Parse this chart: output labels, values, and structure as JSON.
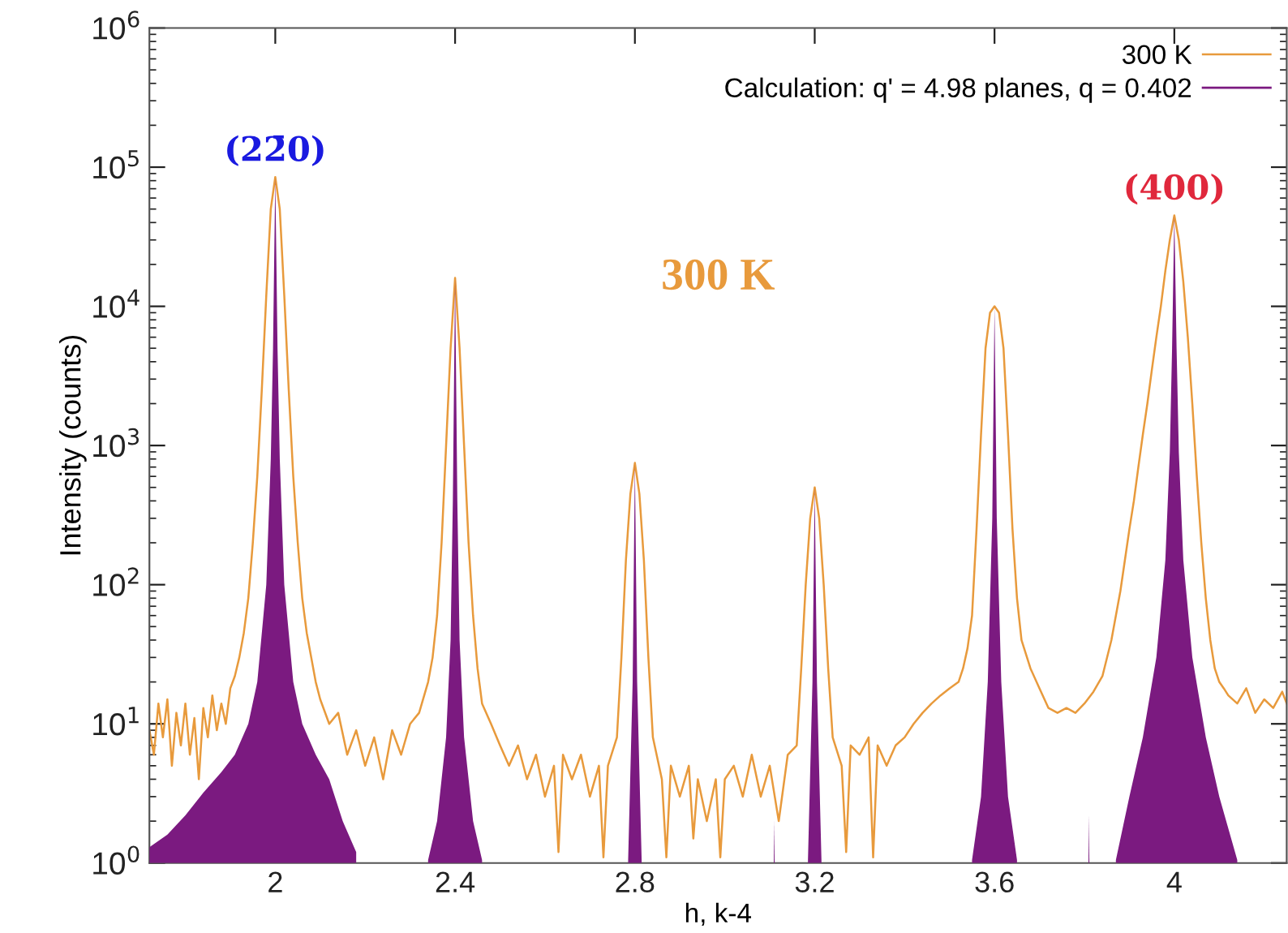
{
  "chart_data": {
    "type": "line",
    "xlabel": "h, k-4",
    "ylabel": "Intensity (counts)",
    "xlim": [
      1.72,
      4.25
    ],
    "xticks": [
      2,
      2.4,
      2.8,
      3.2,
      3.6,
      4
    ],
    "ylim": [
      1,
      1000000
    ],
    "log": "y",
    "yticks": [
      {
        "value": 1,
        "label": "10$^{0}$"
      },
      {
        "value": 10,
        "label": "10$^{1}$"
      },
      {
        "value": 100,
        "label": "10$^{2}$"
      },
      {
        "value": 1000,
        "label": "10$^{3}$"
      },
      {
        "value": 10000,
        "label": "10$^{4}$"
      },
      {
        "value": 100000,
        "label": "10$^{5}$"
      },
      {
        "value": 1000000,
        "label": "10$^{6}$"
      }
    ],
    "grid": false,
    "legend": "top right",
    "marker": "none",
    "line_style": "solid",
    "annotations": [
      {
        "text": "(22̄0)",
        "x": 2,
        "y": 85000
      },
      {
        "text": "(400)",
        "x": 4,
        "y": 45000
      },
      "300 K"
    ],
    "series": [
      {
        "name": "300 K",
        "color": "#e89a3c",
        "x": [
          1.72,
          1.73,
          1.74,
          1.75,
          1.76,
          1.77,
          1.78,
          1.79,
          1.8,
          1.81,
          1.82,
          1.83,
          1.84,
          1.85,
          1.86,
          1.87,
          1.88,
          1.89,
          1.9,
          1.91,
          1.92,
          1.93,
          1.94,
          1.95,
          1.96,
          1.97,
          1.98,
          1.99,
          2.0,
          2.01,
          2.02,
          2.03,
          2.04,
          2.05,
          2.06,
          2.07,
          2.08,
          2.09,
          2.1,
          2.12,
          2.14,
          2.16,
          2.18,
          2.2,
          2.22,
          2.24,
          2.26,
          2.28,
          2.3,
          2.32,
          2.34,
          2.35,
          2.36,
          2.37,
          2.38,
          2.39,
          2.4,
          2.41,
          2.42,
          2.43,
          2.44,
          2.45,
          2.46,
          2.48,
          2.5,
          2.52,
          2.54,
          2.56,
          2.58,
          2.6,
          2.62,
          2.63,
          2.64,
          2.66,
          2.68,
          2.7,
          2.72,
          2.73,
          2.74,
          2.76,
          2.77,
          2.78,
          2.79,
          2.8,
          2.81,
          2.82,
          2.83,
          2.84,
          2.86,
          2.87,
          2.88,
          2.9,
          2.92,
          2.93,
          2.94,
          2.96,
          2.98,
          2.99,
          3.0,
          3.02,
          3.04,
          3.06,
          3.08,
          3.1,
          3.12,
          3.14,
          3.16,
          3.17,
          3.18,
          3.19,
          3.2,
          3.21,
          3.22,
          3.23,
          3.24,
          3.26,
          3.27,
          3.28,
          3.3,
          3.32,
          3.33,
          3.34,
          3.36,
          3.38,
          3.4,
          3.42,
          3.44,
          3.46,
          3.48,
          3.5,
          3.52,
          3.53,
          3.54,
          3.55,
          3.56,
          3.57,
          3.58,
          3.59,
          3.6,
          3.61,
          3.62,
          3.63,
          3.64,
          3.65,
          3.66,
          3.68,
          3.7,
          3.72,
          3.74,
          3.76,
          3.78,
          3.8,
          3.82,
          3.84,
          3.86,
          3.87,
          3.88,
          3.89,
          3.9,
          3.91,
          3.92,
          3.93,
          3.94,
          3.95,
          3.96,
          3.97,
          3.98,
          3.99,
          4.0,
          4.01,
          4.02,
          4.03,
          4.04,
          4.05,
          4.06,
          4.07,
          4.08,
          4.09,
          4.1,
          4.11,
          4.12,
          4.14,
          4.16,
          4.18,
          4.2,
          4.22,
          4.24,
          4.25
        ],
        "values": [
          9,
          6,
          14,
          8,
          15,
          5,
          12,
          7,
          14,
          6,
          11,
          4,
          13,
          8,
          16,
          9,
          14,
          10,
          18,
          22,
          30,
          45,
          80,
          200,
          600,
          2500,
          12000,
          50000,
          85000,
          50000,
          12000,
          2500,
          600,
          200,
          80,
          45,
          30,
          20,
          15,
          10,
          12,
          6,
          9,
          5,
          8,
          4,
          9,
          6,
          10,
          12,
          20,
          30,
          60,
          200,
          1000,
          5000,
          16000,
          5000,
          1000,
          200,
          60,
          25,
          14,
          10,
          7,
          5,
          7,
          4,
          6,
          3,
          5,
          1.2,
          6,
          4,
          6,
          3,
          5,
          1.1,
          5,
          8,
          30,
          150,
          450,
          750,
          450,
          150,
          30,
          8,
          4,
          1.1,
          5,
          3,
          5,
          1.5,
          4,
          2,
          4,
          1.1,
          4,
          5,
          3,
          6,
          3,
          5,
          2,
          6,
          7,
          25,
          100,
          300,
          500,
          300,
          100,
          25,
          8,
          5,
          1.2,
          7,
          6,
          8,
          1.1,
          7,
          5,
          7,
          8,
          10,
          12,
          14,
          16,
          18,
          20,
          25,
          35,
          60,
          250,
          1200,
          5000,
          9000,
          10000,
          9000,
          5000,
          1200,
          250,
          80,
          40,
          25,
          18,
          13,
          12,
          13,
          12,
          14,
          17,
          22,
          40,
          60,
          90,
          150,
          250,
          400,
          700,
          1200,
          2000,
          3500,
          6000,
          10000,
          18000,
          30000,
          45000,
          30000,
          15000,
          6000,
          2000,
          600,
          200,
          80,
          40,
          25,
          20,
          18,
          16,
          14,
          18,
          12,
          15,
          13,
          17,
          14
        ]
      },
      {
        "name": "Calculation: q' = 4.98 planes, q = 0.402",
        "type": "area",
        "color": "#7b1a80",
        "x": [
          1.72,
          1.76,
          1.8,
          1.84,
          1.88,
          1.91,
          1.94,
          1.96,
          1.98,
          1.99,
          1.995,
          2.0,
          2.005,
          2.01,
          2.02,
          2.04,
          2.06,
          2.09,
          2.12,
          2.15,
          2.18,
          2.2,
          2.34,
          2.36,
          2.38,
          2.39,
          2.395,
          2.4,
          2.405,
          2.41,
          2.42,
          2.44,
          2.46,
          2.47,
          2.785,
          2.795,
          2.8,
          2.805,
          2.815,
          2.82,
          3.109,
          3.11,
          3.111,
          3.12,
          3.185,
          3.195,
          3.2,
          3.205,
          3.215,
          3.22,
          3.55,
          3.57,
          3.585,
          3.595,
          3.6,
          3.605,
          3.615,
          3.63,
          3.65,
          3.66,
          3.809,
          3.81,
          3.811,
          3.82,
          3.87,
          3.9,
          3.93,
          3.96,
          3.98,
          3.99,
          3.995,
          4.0,
          4.005,
          4.01,
          4.02,
          4.04,
          4.07,
          4.1,
          4.14
        ],
        "values": [
          1.3,
          1.6,
          2.2,
          3.2,
          4.5,
          6,
          10,
          20,
          100,
          800,
          5000,
          85000,
          5000,
          800,
          100,
          20,
          10,
          6,
          4,
          2,
          1.2,
          null,
          1.05,
          2,
          8,
          40,
          400,
          16000,
          400,
          40,
          8,
          2,
          1.05,
          null,
          1.05,
          20,
          750,
          20,
          1.05,
          null,
          1,
          2,
          1,
          null,
          1.05,
          20,
          500,
          20,
          1.05,
          null,
          1.05,
          3,
          20,
          300,
          10000,
          300,
          20,
          3,
          1.05,
          null,
          1,
          2.2,
          1,
          null,
          1.05,
          3,
          8,
          30,
          150,
          900,
          5000,
          45000,
          5000,
          900,
          150,
          30,
          8,
          3,
          1.05
        ]
      }
    ]
  }
}
